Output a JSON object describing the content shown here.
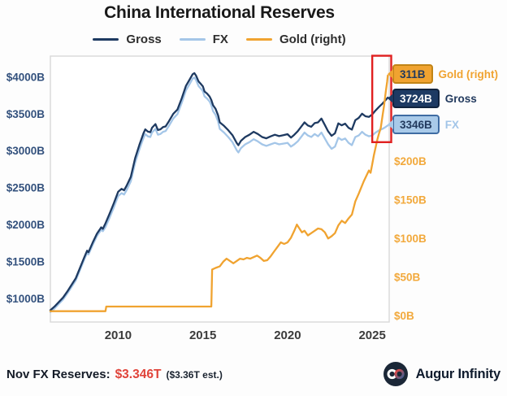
{
  "title": "China International Reserves",
  "legend": {
    "items": [
      {
        "label": "Gross",
        "color": "#1e3a61"
      },
      {
        "label": "FX",
        "color": "#a4c6e8"
      },
      {
        "label": "Gold (right)",
        "color": "#f0a330"
      }
    ]
  },
  "tags": [
    {
      "value": "311B",
      "series": "Gold (right)",
      "bg": "#f0a330",
      "border": "#c18416",
      "fg": "#223a5e",
      "label_color": "#f0a330"
    },
    {
      "value": "3724B",
      "series": "Gross",
      "bg": "#1d3a63",
      "border": "#10233e",
      "fg": "#ffffff",
      "label_color": "#223a5e"
    },
    {
      "value": "3346B",
      "series": "FX",
      "bg": "#a9cae9",
      "border": "#3f6ca3",
      "fg": "#223a5e",
      "label_color": "#a2c5e8"
    }
  ],
  "footer": {
    "label": "Nov FX Reserves:",
    "value": "$3.346T",
    "estimate": "($3.36T est.)",
    "value_color": "#e0443a"
  },
  "brand": {
    "name": "Augur Infinity"
  },
  "chart_data": {
    "type": "line",
    "title": "China International Reserves",
    "x_axis": {
      "min": 2006,
      "max": 2026,
      "ticks": [
        2010,
        2015,
        2020,
        2025
      ]
    },
    "left_axis": {
      "min": 685,
      "max": 4285,
      "prefix": "$",
      "suffix": "B",
      "ticks": [
        1000,
        1500,
        2000,
        2500,
        3000,
        3500,
        4000
      ],
      "units": "USD billions"
    },
    "right_axis": {
      "min": -8,
      "max": 336,
      "prefix": "$",
      "suffix": "B",
      "ticks": [
        0,
        50,
        100,
        150,
        200
      ],
      "units": "USD billions"
    },
    "grid": false,
    "legend_position": "top",
    "highlight_box": {
      "x_min": 2025.0,
      "x_max": 2026.12,
      "y_axis": "left",
      "y_min": 3120,
      "y_max": 4290,
      "color": "#e02020"
    },
    "series": [
      {
        "name": "FX",
        "axis": "left",
        "color": "#a4c6e8",
        "width": 2.3,
        "end_value": 3346,
        "points": [
          [
            2006,
            820
          ],
          [
            2006.25,
            870
          ],
          [
            2006.5,
            930
          ],
          [
            2006.75,
            990
          ],
          [
            2007,
            1070
          ],
          [
            2007.25,
            1160
          ],
          [
            2007.5,
            1250
          ],
          [
            2007.75,
            1390
          ],
          [
            2008,
            1530
          ],
          [
            2008.17,
            1620
          ],
          [
            2008.25,
            1600
          ],
          [
            2008.5,
            1730
          ],
          [
            2008.75,
            1850
          ],
          [
            2008.9,
            1900
          ],
          [
            2009,
            1935
          ],
          [
            2009.1,
            1915
          ],
          [
            2009.25,
            1970
          ],
          [
            2009.5,
            2100
          ],
          [
            2009.75,
            2240
          ],
          [
            2010,
            2390
          ],
          [
            2010.2,
            2430
          ],
          [
            2010.35,
            2410
          ],
          [
            2010.5,
            2470
          ],
          [
            2010.75,
            2590
          ],
          [
            2011,
            2840
          ],
          [
            2011.25,
            3020
          ],
          [
            2011.5,
            3180
          ],
          [
            2011.6,
            3230
          ],
          [
            2011.75,
            3200
          ],
          [
            2011.9,
            3190
          ],
          [
            2012,
            3250
          ],
          [
            2012.2,
            3300
          ],
          [
            2012.35,
            3220
          ],
          [
            2012.5,
            3230
          ],
          [
            2012.65,
            3260
          ],
          [
            2012.8,
            3270
          ],
          [
            2013,
            3340
          ],
          [
            2013.25,
            3440
          ],
          [
            2013.5,
            3500
          ],
          [
            2013.75,
            3650
          ],
          [
            2014,
            3820
          ],
          [
            2014.2,
            3900
          ],
          [
            2014.4,
            3980
          ],
          [
            2014.5,
            3995
          ],
          [
            2014.6,
            3960
          ],
          [
            2014.75,
            3880
          ],
          [
            2014.9,
            3840
          ],
          [
            2015,
            3810
          ],
          [
            2015.1,
            3740
          ],
          [
            2015.25,
            3710
          ],
          [
            2015.4,
            3670
          ],
          [
            2015.5,
            3620
          ],
          [
            2015.6,
            3540
          ],
          [
            2015.75,
            3490
          ],
          [
            2015.9,
            3400
          ],
          [
            2016,
            3300
          ],
          [
            2016.25,
            3250
          ],
          [
            2016.5,
            3190
          ],
          [
            2016.75,
            3120
          ],
          [
            2017,
            3010
          ],
          [
            2017.1,
            2980
          ],
          [
            2017.25,
            3040
          ],
          [
            2017.5,
            3090
          ],
          [
            2017.75,
            3120
          ],
          [
            2018,
            3160
          ],
          [
            2018.25,
            3130
          ],
          [
            2018.5,
            3090
          ],
          [
            2018.75,
            3070
          ],
          [
            2019,
            3090
          ],
          [
            2019.25,
            3110
          ],
          [
            2019.5,
            3090
          ],
          [
            2019.75,
            3100
          ],
          [
            2020,
            3110
          ],
          [
            2020.2,
            3060
          ],
          [
            2020.4,
            3090
          ],
          [
            2020.6,
            3130
          ],
          [
            2020.8,
            3190
          ],
          [
            2021,
            3250
          ],
          [
            2021.2,
            3210
          ],
          [
            2021.4,
            3190
          ],
          [
            2021.6,
            3230
          ],
          [
            2021.8,
            3200
          ],
          [
            2022,
            3250
          ],
          [
            2022.2,
            3170
          ],
          [
            2022.4,
            3090
          ],
          [
            2022.6,
            3030
          ],
          [
            2022.8,
            3060
          ],
          [
            2023,
            3180
          ],
          [
            2023.2,
            3150
          ],
          [
            2023.4,
            3170
          ],
          [
            2023.6,
            3110
          ],
          [
            2023.8,
            3080
          ],
          [
            2024,
            3190
          ],
          [
            2024.2,
            3210
          ],
          [
            2024.4,
            3260
          ],
          [
            2024.6,
            3220
          ],
          [
            2024.8,
            3200
          ],
          [
            2025,
            3210
          ],
          [
            2025.2,
            3250
          ],
          [
            2025.4,
            3280
          ],
          [
            2025.6,
            3300
          ],
          [
            2025.75,
            3320
          ],
          [
            2025.92,
            3346
          ]
        ]
      },
      {
        "name": "Gross",
        "axis": "left",
        "color": "#1e3a61",
        "width": 2.3,
        "end_value": 3724,
        "points": [
          [
            2006,
            845
          ],
          [
            2006.25,
            895
          ],
          [
            2006.5,
            956
          ],
          [
            2006.75,
            1016
          ],
          [
            2007,
            1097
          ],
          [
            2007.25,
            1188
          ],
          [
            2007.5,
            1278
          ],
          [
            2007.75,
            1419
          ],
          [
            2008,
            1560
          ],
          [
            2008.17,
            1650
          ],
          [
            2008.25,
            1630
          ],
          [
            2008.5,
            1761
          ],
          [
            2008.75,
            1881
          ],
          [
            2008.9,
            1932
          ],
          [
            2009,
            1967
          ],
          [
            2009.1,
            1947
          ],
          [
            2009.25,
            2020
          ],
          [
            2009.5,
            2155
          ],
          [
            2009.75,
            2296
          ],
          [
            2010,
            2448
          ],
          [
            2010.2,
            2488
          ],
          [
            2010.35,
            2468
          ],
          [
            2010.5,
            2529
          ],
          [
            2010.75,
            2650
          ],
          [
            2011,
            2902
          ],
          [
            2011.25,
            3082
          ],
          [
            2011.5,
            3243
          ],
          [
            2011.6,
            3293
          ],
          [
            2011.75,
            3263
          ],
          [
            2011.9,
            3254
          ],
          [
            2012,
            3315
          ],
          [
            2012.2,
            3365
          ],
          [
            2012.35,
            3284
          ],
          [
            2012.5,
            3294
          ],
          [
            2012.65,
            3324
          ],
          [
            2012.8,
            3333
          ],
          [
            2013,
            3403
          ],
          [
            2013.25,
            3502
          ],
          [
            2013.5,
            3562
          ],
          [
            2013.75,
            3711
          ],
          [
            2014,
            3881
          ],
          [
            2014.2,
            3960
          ],
          [
            2014.4,
            4040
          ],
          [
            2014.5,
            4055
          ],
          [
            2014.6,
            4021
          ],
          [
            2014.75,
            3942
          ],
          [
            2014.9,
            3903
          ],
          [
            2015,
            3875
          ],
          [
            2015.1,
            3806
          ],
          [
            2015.25,
            3777
          ],
          [
            2015.4,
            3738
          ],
          [
            2015.5,
            3690
          ],
          [
            2015.6,
            3620
          ],
          [
            2015.75,
            3572
          ],
          [
            2015.9,
            3485
          ],
          [
            2016,
            3388
          ],
          [
            2016.25,
            3340
          ],
          [
            2016.5,
            3282
          ],
          [
            2016.75,
            3215
          ],
          [
            2017,
            3108
          ],
          [
            2017.1,
            3078
          ],
          [
            2017.25,
            3139
          ],
          [
            2017.5,
            3190
          ],
          [
            2017.75,
            3220
          ],
          [
            2018,
            3260
          ],
          [
            2018.25,
            3230
          ],
          [
            2018.5,
            3190
          ],
          [
            2018.75,
            3172
          ],
          [
            2019,
            3198
          ],
          [
            2019.25,
            3220
          ],
          [
            2019.5,
            3202
          ],
          [
            2019.75,
            3214
          ],
          [
            2020,
            3228
          ],
          [
            2020.2,
            3182
          ],
          [
            2020.4,
            3220
          ],
          [
            2020.6,
            3268
          ],
          [
            2020.8,
            3328
          ],
          [
            2021,
            3388
          ],
          [
            2021.2,
            3346
          ],
          [
            2021.4,
            3328
          ],
          [
            2021.6,
            3378
          ],
          [
            2021.8,
            3388
          ],
          [
            2022,
            3440
          ],
          [
            2022.2,
            3352
          ],
          [
            2022.4,
            3266
          ],
          [
            2022.6,
            3206
          ],
          [
            2022.8,
            3240
          ],
          [
            2023,
            3374
          ],
          [
            2023.2,
            3348
          ],
          [
            2023.4,
            3370
          ],
          [
            2023.6,
            3314
          ],
          [
            2023.8,
            3290
          ],
          [
            2024,
            3418
          ],
          [
            2024.2,
            3448
          ],
          [
            2024.4,
            3506
          ],
          [
            2024.6,
            3470
          ],
          [
            2024.8,
            3462
          ],
          [
            2025,
            3495
          ],
          [
            2025.2,
            3550
          ],
          [
            2025.4,
            3598
          ],
          [
            2025.6,
            3642
          ],
          [
            2025.75,
            3680
          ],
          [
            2025.92,
            3724
          ]
        ]
      },
      {
        "name": "Gold (right)",
        "axis": "right",
        "color": "#f0a330",
        "width": 2.3,
        "end_value": 311,
        "points": [
          [
            2006,
            6
          ],
          [
            2009.25,
            6
          ],
          [
            2009.3,
            12
          ],
          [
            2015.5,
            12
          ],
          [
            2015.55,
            60
          ],
          [
            2015.75,
            62
          ],
          [
            2016,
            64
          ],
          [
            2016.2,
            70
          ],
          [
            2016.4,
            74
          ],
          [
            2016.6,
            71
          ],
          [
            2016.8,
            68
          ],
          [
            2017,
            71
          ],
          [
            2017.2,
            74
          ],
          [
            2017.4,
            73
          ],
          [
            2017.6,
            75
          ],
          [
            2017.8,
            74
          ],
          [
            2018,
            76
          ],
          [
            2018.2,
            78
          ],
          [
            2018.4,
            75
          ],
          [
            2018.6,
            71
          ],
          [
            2018.8,
            72
          ],
          [
            2019,
            77
          ],
          [
            2019.2,
            83
          ],
          [
            2019.4,
            89
          ],
          [
            2019.6,
            95
          ],
          [
            2019.8,
            93
          ],
          [
            2020,
            95
          ],
          [
            2020.2,
            101
          ],
          [
            2020.4,
            110
          ],
          [
            2020.55,
            118
          ],
          [
            2020.7,
            113
          ],
          [
            2020.85,
            108
          ],
          [
            2021,
            110
          ],
          [
            2021.2,
            104
          ],
          [
            2021.4,
            107
          ],
          [
            2021.6,
            110
          ],
          [
            2021.8,
            113
          ],
          [
            2022,
            112
          ],
          [
            2022.2,
            108
          ],
          [
            2022.4,
            100
          ],
          [
            2022.6,
            103
          ],
          [
            2022.8,
            107
          ],
          [
            2023,
            117
          ],
          [
            2023.2,
            123
          ],
          [
            2023.4,
            120
          ],
          [
            2023.6,
            126
          ],
          [
            2023.8,
            131
          ],
          [
            2024,
            148
          ],
          [
            2024.2,
            158
          ],
          [
            2024.35,
            166
          ],
          [
            2024.5,
            174
          ],
          [
            2024.65,
            181
          ],
          [
            2024.8,
            188
          ],
          [
            2024.9,
            185
          ],
          [
            2025,
            196
          ],
          [
            2025.1,
            208
          ],
          [
            2025.2,
            218
          ],
          [
            2025.3,
            228
          ],
          [
            2025.4,
            236
          ],
          [
            2025.5,
            243
          ],
          [
            2025.6,
            258
          ],
          [
            2025.7,
            272
          ],
          [
            2025.8,
            290
          ],
          [
            2025.88,
            303
          ],
          [
            2025.92,
            311
          ]
        ]
      }
    ]
  }
}
